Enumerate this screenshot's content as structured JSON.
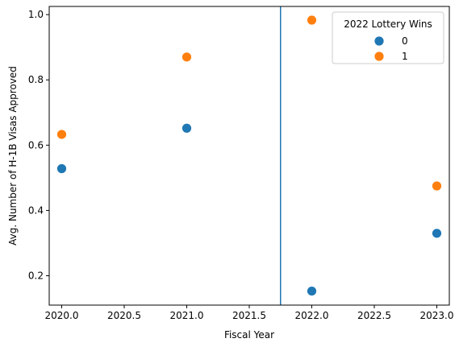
{
  "chart_data": {
    "type": "scatter",
    "xlabel": "Fiscal Year",
    "ylabel": "Avg. Number of H-1B Visas Approved",
    "xlim": [
      2019.9,
      2023.1
    ],
    "ylim": [
      0.11,
      1.025
    ],
    "xticks": [
      2020.0,
      2020.5,
      2021.0,
      2021.5,
      2022.0,
      2022.5,
      2023.0
    ],
    "xtick_labels": [
      "2020.0",
      "2020.5",
      "2021.0",
      "2021.5",
      "2022.0",
      "2022.5",
      "2023.0"
    ],
    "yticks": [
      0.2,
      0.4,
      0.6,
      0.8,
      1.0
    ],
    "ytick_labels": [
      "0.2",
      "0.4",
      "0.6",
      "0.8",
      "1.0"
    ],
    "vline_x": 2021.75,
    "vline_color": "#1f77b4",
    "legend": {
      "title": "2022 Lottery Wins",
      "placement": "top-right"
    },
    "series": [
      {
        "name": "0",
        "color": "#1f77b4",
        "x": [
          2020,
          2021,
          2022,
          2023
        ],
        "y": [
          0.528,
          0.652,
          0.153,
          0.33
        ]
      },
      {
        "name": "1",
        "color": "#ff7f0e",
        "x": [
          2020,
          2021,
          2022,
          2023
        ],
        "y": [
          0.633,
          0.87,
          0.983,
          0.475
        ]
      }
    ],
    "grid": false
  }
}
